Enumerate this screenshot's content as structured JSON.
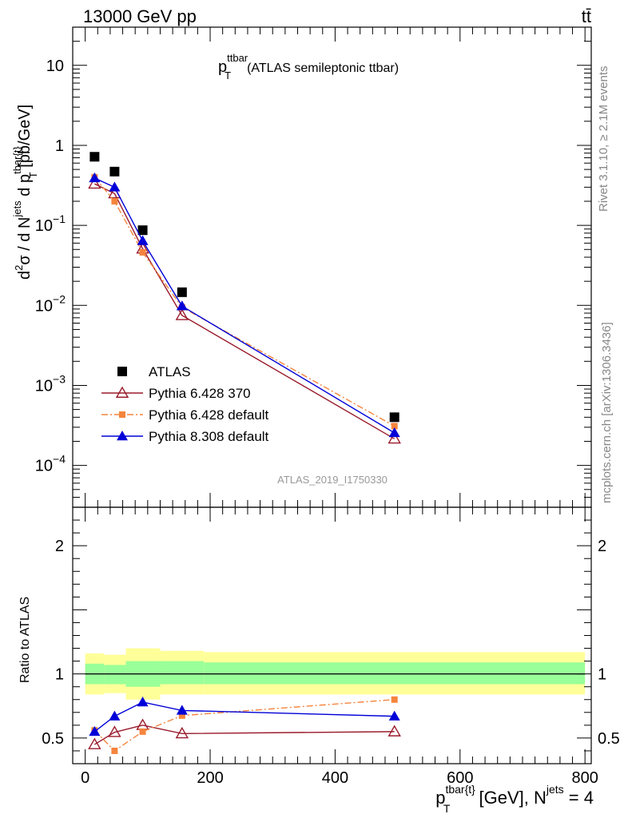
{
  "header": {
    "energy_label": "13000 GeV pp",
    "process_label": "tt̄"
  },
  "side_labels": {
    "rivet": "Rivet 3.1.10, ≥ 2.1M events",
    "mcplots": "mcplots.cern.ch [arXiv:1306.3436]"
  },
  "chart_data": [
    {
      "type": "scatter",
      "panel": "main",
      "title_main": "p",
      "title_sup": "ttbar",
      "title_sub": "T",
      "title_rest": "(ATLAS semileptonic ttbar)",
      "ylabel": "d²σ / d N^jets d p^tbar{t}_T [pb/GeV]",
      "ylabel_parts": {
        "a": "d",
        "a_sup": "2",
        "b": "σ / d N",
        "b_sup": "jets",
        "c": " d p",
        "c_sup": "tbar{t}",
        "c_sub": "T",
        "d": " [pb/GeV]"
      },
      "yscale": "log",
      "xlim": [
        -20,
        810
      ],
      "ylim": [
        3e-05,
        30
      ],
      "y_ticks": [
        {
          "value": 10,
          "label": "10"
        },
        {
          "value": 1,
          "label": "1"
        },
        {
          "value": 0.1,
          "label": "10",
          "sup": "−1"
        },
        {
          "value": 0.01,
          "label": "10",
          "sup": "−2"
        },
        {
          "value": 0.001,
          "label": "10",
          "sup": "−3"
        },
        {
          "value": 0.0001,
          "label": "10",
          "sup": "−4"
        }
      ],
      "analysis_label": "ATLAS_2019_I1750330",
      "legend_position": "bottom-left",
      "series": [
        {
          "name": "ATLAS",
          "color": "#000000",
          "marker": "square",
          "x": [
            15,
            47,
            92,
            155,
            495
          ],
          "y": [
            0.72,
            0.47,
            0.087,
            0.0146,
            0.0004
          ]
        },
        {
          "name": "Pythia 6.428 370",
          "color": "#9a1a2a",
          "marker": "open-triangle",
          "line": "solid",
          "x": [
            15,
            47,
            92,
            155,
            495
          ],
          "y": [
            0.33,
            0.25,
            0.051,
            0.0075,
            0.000215
          ]
        },
        {
          "name": "Pythia 6.428 default",
          "color": "#f5843c",
          "marker": "small-square",
          "line": "dashdot",
          "x": [
            15,
            47,
            92,
            155,
            495
          ],
          "y": [
            0.4,
            0.2,
            0.046,
            0.0095,
            0.00031
          ]
        },
        {
          "name": "Pythia 8.308 default",
          "color": "#0000d8",
          "marker": "filled-triangle",
          "line": "solid",
          "x": [
            15,
            47,
            92,
            155,
            495
          ],
          "y": [
            0.39,
            0.3,
            0.064,
            0.0098,
            0.000255
          ]
        }
      ]
    },
    {
      "type": "line",
      "panel": "ratio",
      "ylabel": "Ratio to ATLAS",
      "xlabel_parts": {
        "a": "p",
        "a_sup": "tbar{t}",
        "a_sub": "T",
        "b": " [GeV], N",
        "b_sup": "jets",
        "c": " = 4"
      },
      "xlim": [
        -20,
        810
      ],
      "ylim": [
        0.3,
        2.3
      ],
      "x_ticks": [
        0,
        200,
        400,
        600,
        800
      ],
      "y_ticks": [
        0.5,
        1,
        2
      ],
      "bands": {
        "edges": [
          0,
          30,
          65,
          120,
          190,
          800
        ],
        "inner": [
          [
            0.92,
            1.08
          ],
          [
            0.92,
            1.07
          ],
          [
            0.9,
            1.1
          ],
          [
            0.92,
            1.1
          ],
          [
            0.92,
            1.09
          ]
        ],
        "outer": [
          [
            0.84,
            1.16
          ],
          [
            0.85,
            1.15
          ],
          [
            0.8,
            1.2
          ],
          [
            0.84,
            1.18
          ],
          [
            0.84,
            1.17
          ]
        ],
        "inner_color": "#99ff99",
        "outer_color": "#ffff99"
      },
      "series": [
        {
          "name": "Pythia 6.428 370",
          "color": "#9a1a2a",
          "marker": "open-triangle",
          "line": "solid",
          "x": [
            15,
            47,
            92,
            155,
            495
          ],
          "y": [
            0.45,
            0.545,
            0.6,
            0.535,
            0.55
          ]
        },
        {
          "name": "Pythia 6.428 default",
          "color": "#f5843c",
          "marker": "small-square",
          "line": "dashdot",
          "x": [
            15,
            47,
            92,
            155,
            495
          ],
          "y": [
            0.56,
            0.4,
            0.55,
            0.675,
            0.8
          ]
        },
        {
          "name": "Pythia 8.308 default",
          "color": "#0000d8",
          "marker": "filled-triangle",
          "line": "solid",
          "x": [
            15,
            47,
            92,
            155,
            495
          ],
          "y": [
            0.55,
            0.67,
            0.78,
            0.715,
            0.67
          ]
        }
      ]
    }
  ]
}
